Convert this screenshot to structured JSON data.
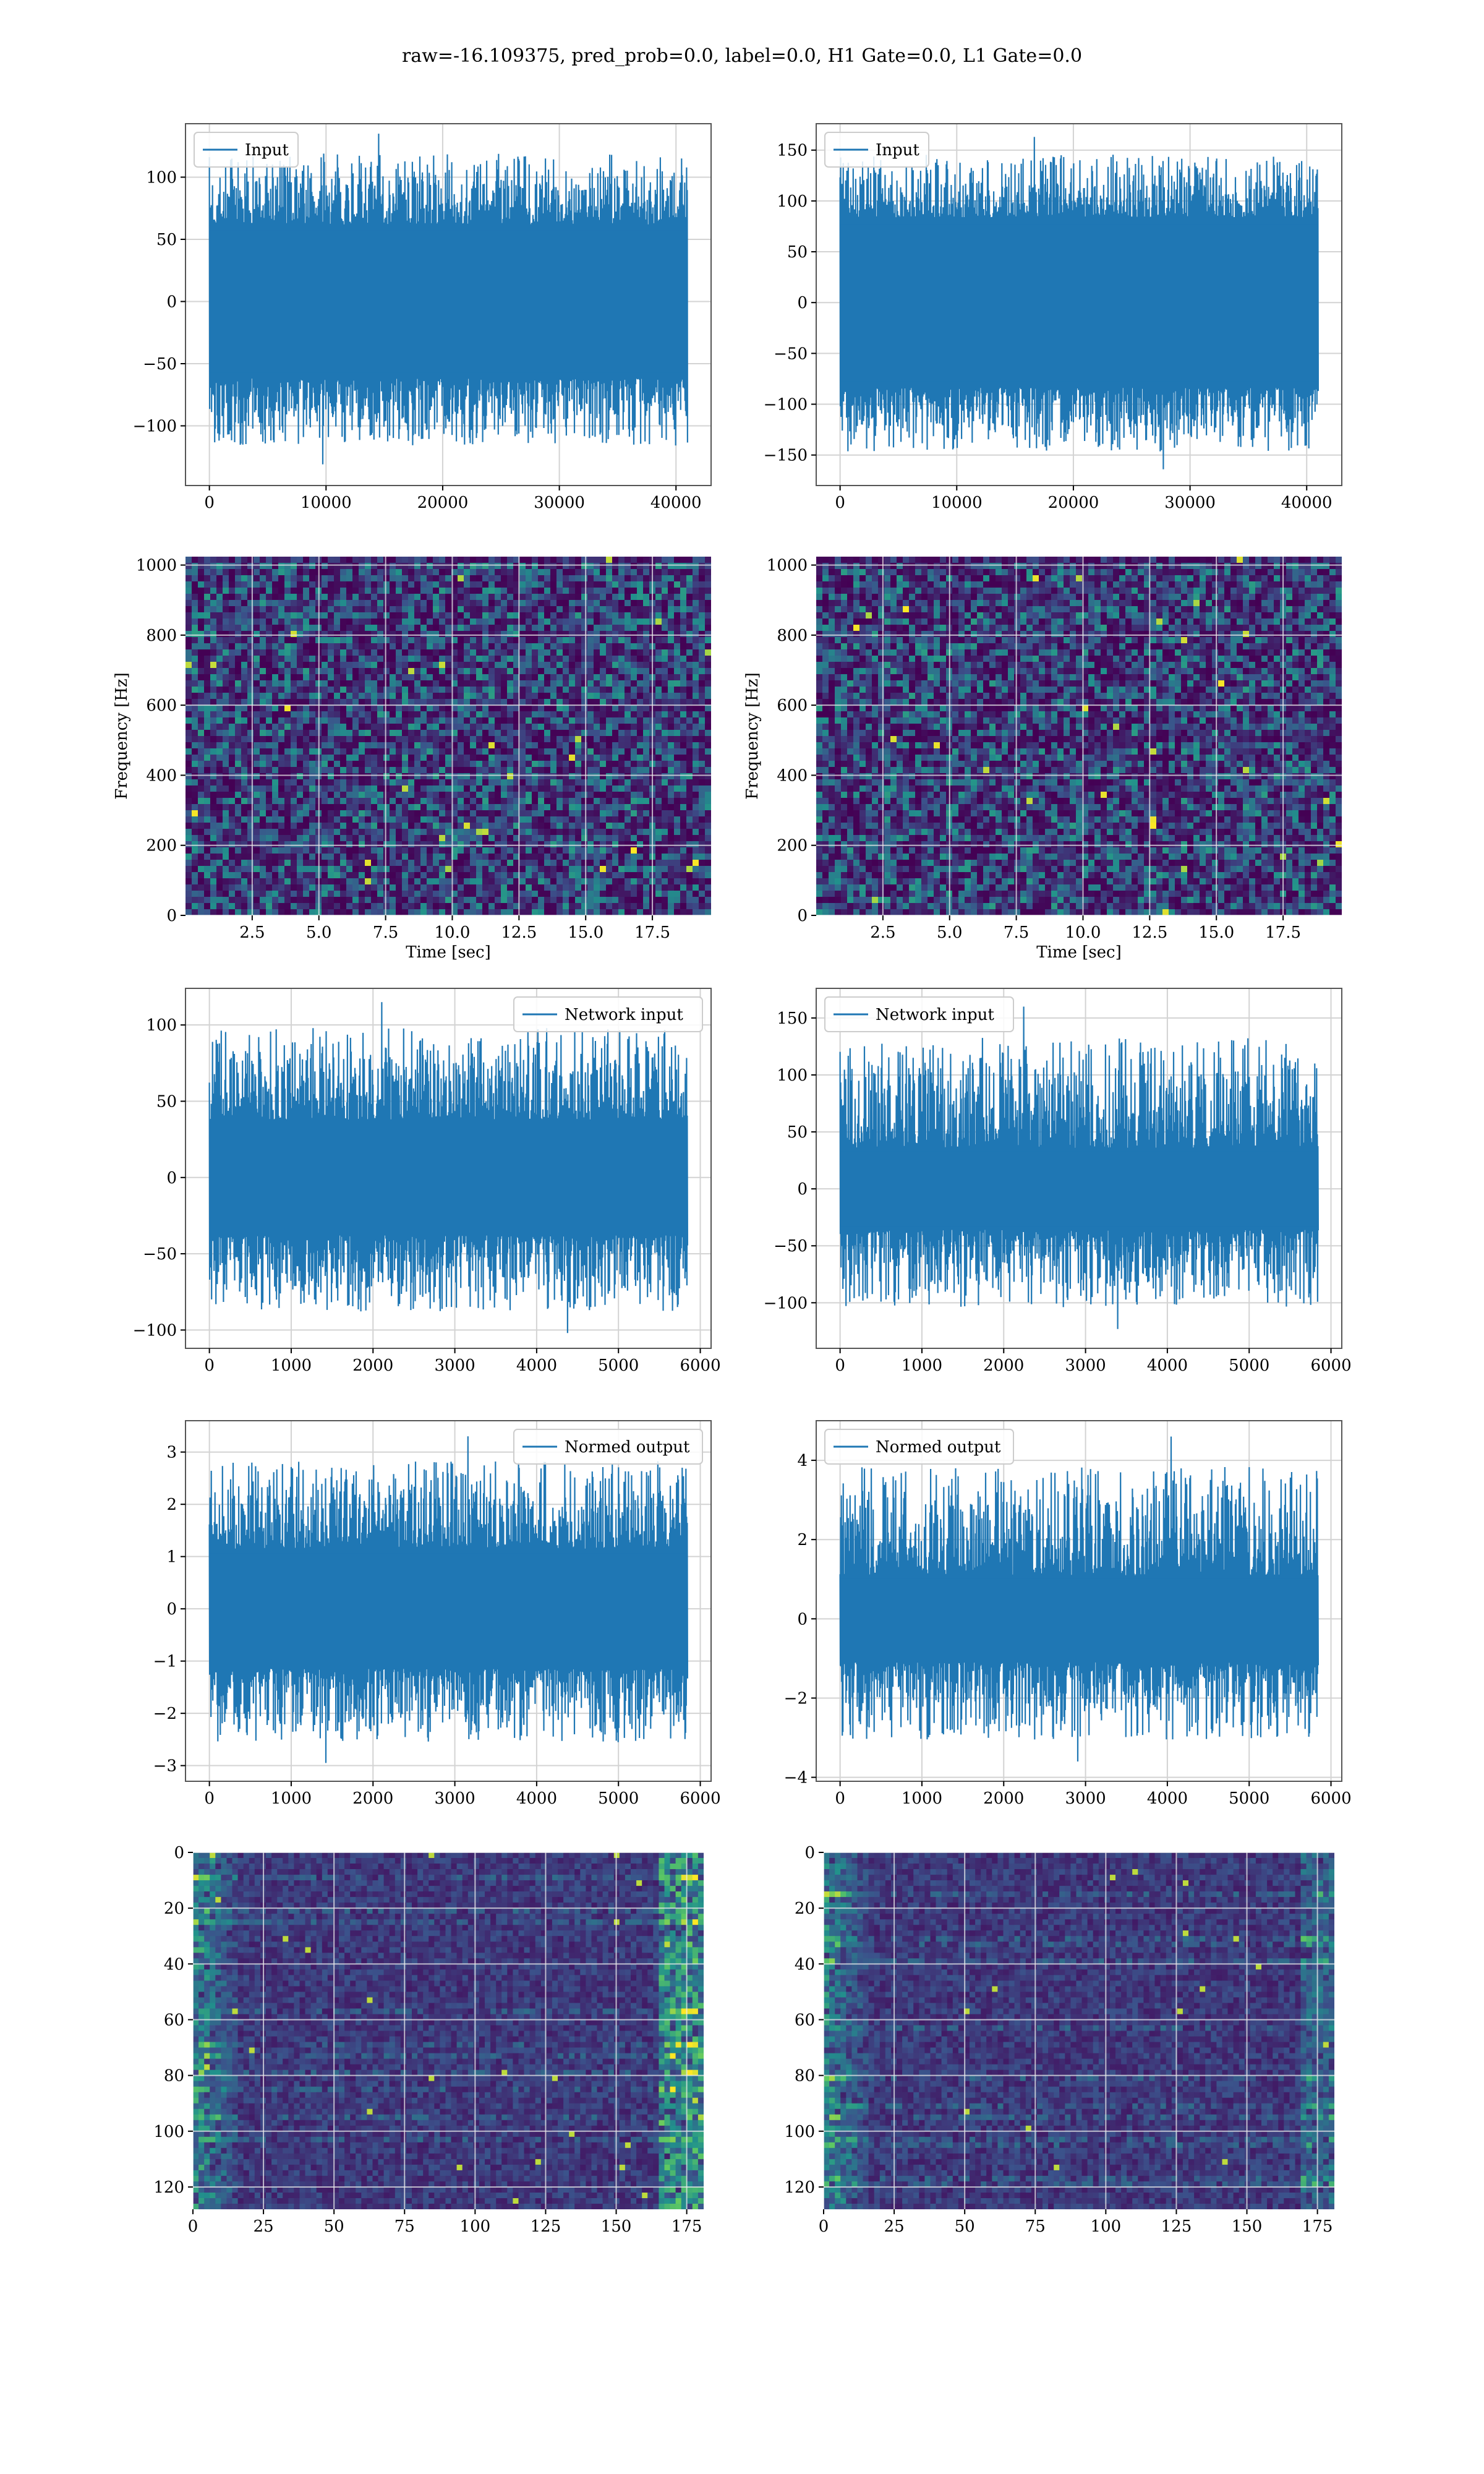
{
  "figure": {
    "suptitle": "raw=-16.109375, pred_prob=0.0, label=0.0, H1 Gate=0.0, L1 Gate=0.0"
  },
  "colors": {
    "line": "#1f77b4",
    "grid": "#d3d3d3",
    "viridis_dark": "#440154",
    "viridis_mid": "#31688e",
    "viridis_teal": "#21918c",
    "viridis_green": "#5ec962",
    "viridis_yellow": "#fde725"
  },
  "chart_data": [
    {
      "id": "h1-input",
      "type": "line",
      "legend": "Input",
      "legend_loc": "upper-left",
      "xlim": [
        -2048,
        43008
      ],
      "ylim": [
        -148,
        143
      ],
      "xticks": [
        0,
        10000,
        20000,
        30000,
        40000
      ],
      "yticks": [
        -100,
        -50,
        0,
        50,
        100
      ],
      "xlabel": "",
      "ylabel": "",
      "signal": {
        "n_samples": 40960,
        "band": [
          -62,
          62
        ],
        "peak_max": 135,
        "peak_min": -131
      }
    },
    {
      "id": "l1-input",
      "type": "line",
      "legend": "Input",
      "legend_loc": "upper-left",
      "xlim": [
        -2048,
        43008
      ],
      "ylim": [
        -180,
        176
      ],
      "xticks": [
        0,
        10000,
        20000,
        30000,
        40000
      ],
      "yticks": [
        -150,
        -100,
        -50,
        0,
        50,
        100,
        150
      ],
      "xlabel": "",
      "ylabel": "",
      "signal": {
        "n_samples": 40960,
        "band": [
          -84,
          84
        ],
        "peak_max": 163,
        "peak_min": -164
      }
    },
    {
      "id": "h1-spectrogram",
      "type": "heatmap",
      "colormap": "viridis",
      "xlim": [
        0,
        19.7
      ],
      "ylim": [
        0,
        1024
      ],
      "xticks": [
        2.5,
        5.0,
        7.5,
        10.0,
        12.5,
        15.0,
        17.5
      ],
      "yticks": [
        0,
        200,
        400,
        600,
        800,
        1000
      ],
      "xlabel": "Time [sec]",
      "ylabel": "Frequency [Hz]"
    },
    {
      "id": "l1-spectrogram",
      "type": "heatmap",
      "colormap": "viridis",
      "xlim": [
        0,
        19.7
      ],
      "ylim": [
        0,
        1024
      ],
      "xticks": [
        2.5,
        5.0,
        7.5,
        10.0,
        12.5,
        15.0,
        17.5
      ],
      "yticks": [
        0,
        200,
        400,
        600,
        800,
        1000
      ],
      "xlabel": "Time [sec]",
      "ylabel": "Frequency [Hz]"
    },
    {
      "id": "h1-network-input",
      "type": "line",
      "legend": "Network input",
      "legend_loc": "upper-right",
      "xlim": [
        -292,
        6132
      ],
      "ylim": [
        -112,
        124
      ],
      "xticks": [
        0,
        1000,
        2000,
        3000,
        4000,
        5000,
        6000
      ],
      "yticks": [
        -100,
        -50,
        0,
        50,
        100
      ],
      "xlabel": "",
      "ylabel": "",
      "signal": {
        "n_samples": 5840,
        "band": [
          -38,
          38
        ],
        "peak_max": 115,
        "peak_min": -102
      }
    },
    {
      "id": "l1-network-input",
      "type": "line",
      "legend": "Network input",
      "legend_loc": "upper-left",
      "xlim": [
        -292,
        6132
      ],
      "ylim": [
        -140,
        176
      ],
      "xticks": [
        0,
        1000,
        2000,
        3000,
        4000,
        5000,
        6000
      ],
      "yticks": [
        -100,
        -50,
        0,
        50,
        100,
        150
      ],
      "xlabel": "",
      "ylabel": "",
      "signal": {
        "n_samples": 5840,
        "band": [
          -36,
          36
        ],
        "peak_max": 160,
        "peak_min": -123
      }
    },
    {
      "id": "h1-normed-output",
      "type": "line",
      "legend": "Normed output",
      "legend_loc": "upper-right",
      "xlim": [
        -292,
        6132
      ],
      "ylim": [
        -3.3,
        3.6
      ],
      "xticks": [
        0,
        1000,
        2000,
        3000,
        4000,
        5000,
        6000
      ],
      "yticks": [
        -3,
        -2,
        -1,
        0,
        1,
        2,
        3
      ],
      "xlabel": "",
      "ylabel": "",
      "signal": {
        "n_samples": 5840,
        "band": [
          -1.15,
          1.15
        ],
        "peak_max": 3.3,
        "peak_min": -2.95
      }
    },
    {
      "id": "l1-normed-output",
      "type": "line",
      "legend": "Normed output",
      "legend_loc": "upper-left",
      "xlim": [
        -292,
        6132
      ],
      "ylim": [
        -4.1,
        5.0
      ],
      "xticks": [
        0,
        1000,
        2000,
        3000,
        4000,
        5000,
        6000
      ],
      "yticks": [
        -4,
        -2,
        0,
        2,
        4
      ],
      "xlabel": "",
      "ylabel": "",
      "signal": {
        "n_samples": 5840,
        "band": [
          -1.1,
          1.1
        ],
        "peak_max": 4.6,
        "peak_min": -3.6
      }
    },
    {
      "id": "h1-feature-map",
      "type": "heatmap",
      "colormap": "viridis",
      "xlim": [
        0,
        181
      ],
      "ylim": [
        128,
        0
      ],
      "xticks": [
        0,
        25,
        50,
        75,
        100,
        125,
        150,
        175
      ],
      "yticks": [
        0,
        20,
        40,
        60,
        80,
        100,
        120
      ],
      "xlabel": "",
      "ylabel": ""
    },
    {
      "id": "l1-feature-map",
      "type": "heatmap",
      "colormap": "viridis",
      "xlim": [
        0,
        181
      ],
      "ylim": [
        128,
        0
      ],
      "xticks": [
        0,
        25,
        50,
        75,
        100,
        125,
        150,
        175
      ],
      "yticks": [
        0,
        20,
        40,
        60,
        80,
        100,
        120
      ],
      "xlabel": "",
      "ylabel": ""
    }
  ]
}
